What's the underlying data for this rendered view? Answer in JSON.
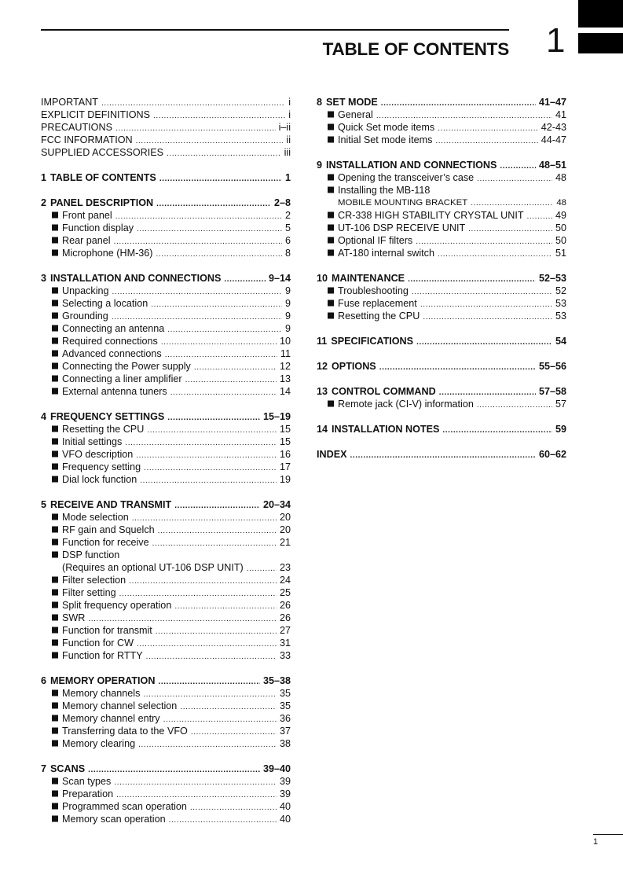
{
  "header": {
    "title": "TABLE OF CONTENTS",
    "chapter_number": "1"
  },
  "footer": {
    "page": "1"
  },
  "left": [
    {
      "front": [
        {
          "text": "IMPORTANT",
          "page": "i"
        },
        {
          "text": "EXPLICIT DEFINITIONS",
          "page": "i"
        },
        {
          "text": "PRECAUTIONS",
          "page": "i–ii"
        },
        {
          "text": "FCC INFORMATION",
          "page": "ii"
        },
        {
          "text": "SUPPLIED ACCESSORIES",
          "page": "iii"
        }
      ]
    },
    {
      "num": "1",
      "title": "TABLE OF CONTENTS",
      "page": "1",
      "items": []
    },
    {
      "num": "2",
      "title": "PANEL DESCRIPTION",
      "page": "2–8",
      "items": [
        {
          "text": "Front panel",
          "page": "2"
        },
        {
          "text": "Function display",
          "page": "5"
        },
        {
          "text": "Rear panel",
          "page": "6"
        },
        {
          "text": "Microphone (HM-36)",
          "page": "8"
        }
      ]
    },
    {
      "num": "3",
      "title": "INSTALLATION AND CONNECTIONS",
      "page": "9–14",
      "items": [
        {
          "text": "Unpacking",
          "page": "9"
        },
        {
          "text": "Selecting a location",
          "page": "9"
        },
        {
          "text": "Grounding",
          "page": "9"
        },
        {
          "text": "Connecting an antenna",
          "page": "9"
        },
        {
          "text": "Required connections",
          "page": "10"
        },
        {
          "text": "Advanced connections",
          "page": "11"
        },
        {
          "text": "Connecting the Power supply",
          "page": "12"
        },
        {
          "text": "Connecting a liner amplifier",
          "page": "13"
        },
        {
          "text": "External antenna tuners",
          "page": "14"
        }
      ]
    },
    {
      "num": "4",
      "title": "FREQUENCY SETTINGS",
      "page": "15–19",
      "items": [
        {
          "text": "Resetting the CPU",
          "page": "15"
        },
        {
          "text": "Initial settings",
          "page": "15"
        },
        {
          "text": "VFO description",
          "page": "16"
        },
        {
          "text": "Frequency setting",
          "page": "17"
        },
        {
          "text": "Dial lock function",
          "page": "19"
        }
      ]
    },
    {
      "num": "5",
      "title": "RECEIVE AND TRANSMIT",
      "page": "20–34",
      "items": [
        {
          "text": "Mode selection",
          "page": "20"
        },
        {
          "text": "RF gain and Squelch",
          "page": "20"
        },
        {
          "text": "Function for receive",
          "page": "21"
        },
        {
          "text": "DSP function",
          "cont": "(Requires an optional UT-106 DSP UNIT)",
          "page": "23"
        },
        {
          "text": "Filter selection",
          "page": "24"
        },
        {
          "text": "Filter setting",
          "page": "25"
        },
        {
          "text": "Split frequency operation",
          "page": "26"
        },
        {
          "text": "SWR",
          "page": "26"
        },
        {
          "text": "Function for transmit",
          "page": "27"
        },
        {
          "text": "Function for CW",
          "page": "31"
        },
        {
          "text": "Function for RTTY",
          "page": "33"
        }
      ]
    },
    {
      "num": "6",
      "title": "MEMORY OPERATION",
      "page": "35–38",
      "items": [
        {
          "text": "Memory channels",
          "page": "35"
        },
        {
          "text": "Memory channel selection",
          "page": "35"
        },
        {
          "text": "Memory channel entry",
          "page": "36"
        },
        {
          "text": "Transferring data to the VFO",
          "page": "37"
        },
        {
          "text": "Memory clearing",
          "page": "38"
        }
      ]
    },
    {
      "num": "7",
      "title": "SCANS",
      "page": "39–40",
      "items": [
        {
          "text": "Scan types",
          "page": "39"
        },
        {
          "text": "Preparation",
          "page": "39"
        },
        {
          "text": "Programmed scan operation",
          "page": "40"
        },
        {
          "text": "Memory scan operation",
          "page": "40"
        }
      ]
    }
  ],
  "right": [
    {
      "num": "8",
      "title": "SET MODE",
      "page": "41–47",
      "items": [
        {
          "text": "General",
          "page": "41"
        },
        {
          "text": "Quick Set mode items",
          "page": "42-43"
        },
        {
          "text": "Initial Set mode items",
          "page": "44-47"
        }
      ]
    },
    {
      "num": "9",
      "title": "INSTALLATION AND CONNECTIONS",
      "page": "48–51",
      "items": [
        {
          "text": "Opening the transceiver’s case",
          "page": "48"
        },
        {
          "text": "Installing the MB-118",
          "cont": "MOBILE MOUNTING BRACKET",
          "cont_small": true,
          "page": "48"
        },
        {
          "text": "CR-338 HIGH STABILITY CRYSTAL UNIT",
          "page": "49"
        },
        {
          "text": "UT-106 DSP RECEIVE UNIT",
          "page": "50"
        },
        {
          "text": "Optional IF filters",
          "page": "50"
        },
        {
          "text": "AT-180 internal switch",
          "page": "51"
        }
      ]
    },
    {
      "num": "10",
      "title": "MAINTENANCE",
      "page": "52–53",
      "items": [
        {
          "text": "Troubleshooting",
          "page": "52"
        },
        {
          "text": "Fuse replacement",
          "page": "53"
        },
        {
          "text": "Resetting the CPU",
          "page": "53"
        }
      ]
    },
    {
      "num": "11",
      "title": "SPECIFICATIONS",
      "page": "54",
      "items": []
    },
    {
      "num": "12",
      "title": "OPTIONS",
      "page": "55–56",
      "items": []
    },
    {
      "num": "13",
      "title": "CONTROL COMMAND",
      "page": "57–58",
      "items": [
        {
          "text": "Remote jack (CI-V) information",
          "page": "57"
        }
      ]
    },
    {
      "num": "14",
      "title": "INSTALLATION NOTES",
      "page": "59",
      "items": []
    },
    {
      "num": "",
      "title": "INDEX",
      "page": "60–62",
      "items": []
    }
  ]
}
